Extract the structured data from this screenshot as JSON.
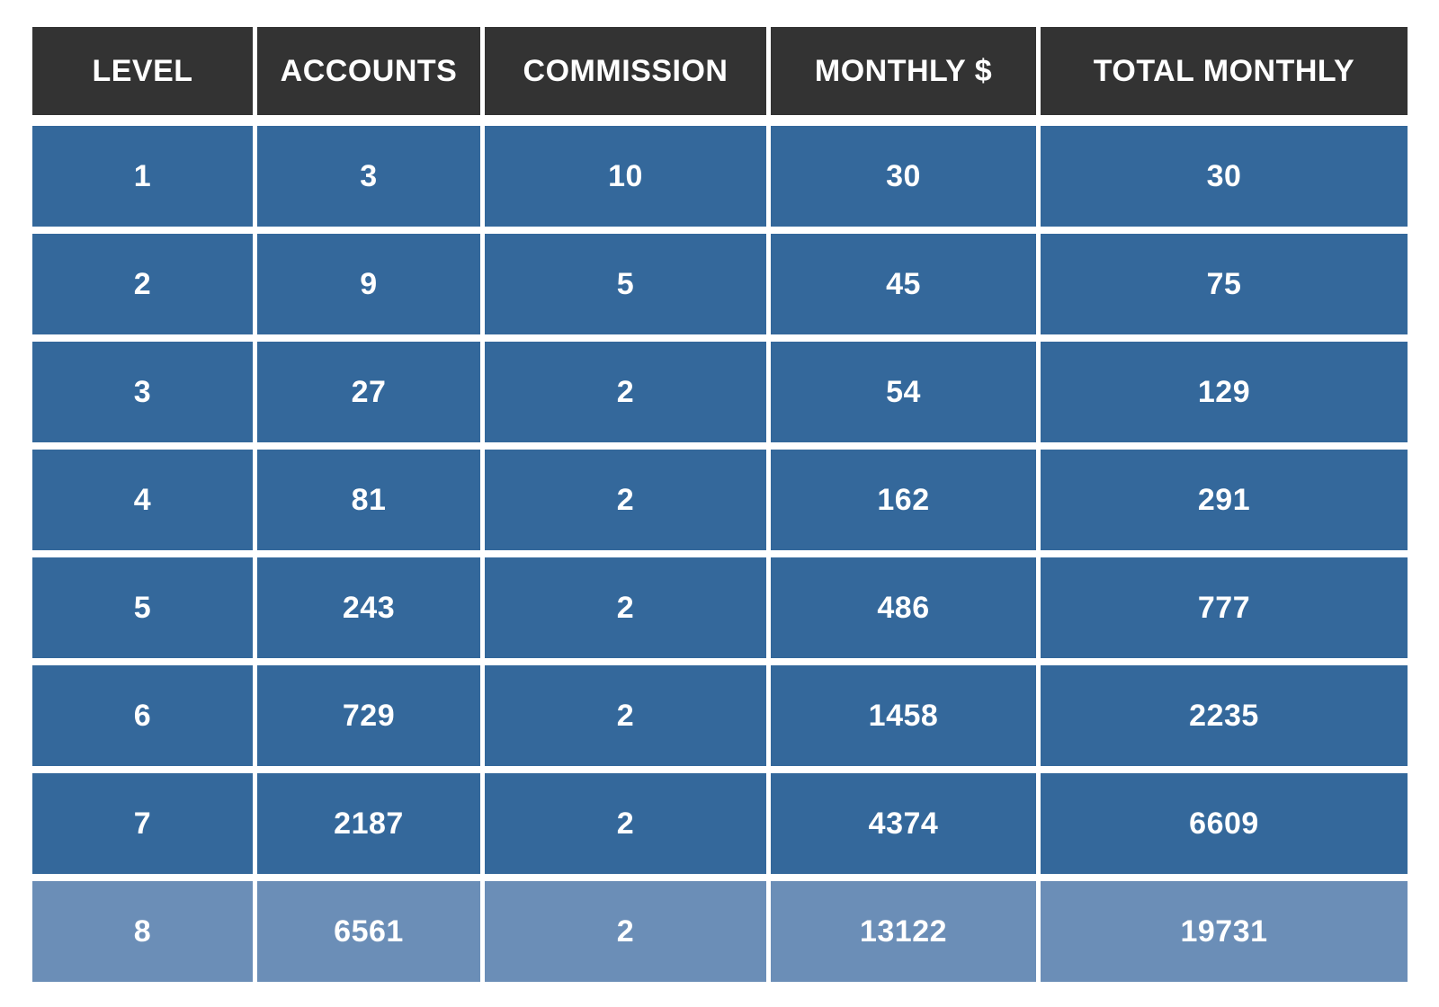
{
  "chart_data": {
    "type": "table",
    "title": "",
    "columns": [
      "LEVEL",
      "ACCOUNTS",
      "COMMISSION",
      "MONTHLY $",
      "TOTAL MONTHLY"
    ],
    "rows": [
      [
        "1",
        "3",
        "10",
        "30",
        "30"
      ],
      [
        "2",
        "9",
        "5",
        "45",
        "75"
      ],
      [
        "3",
        "27",
        "2",
        "54",
        "129"
      ],
      [
        "4",
        "81",
        "2",
        "162",
        "291"
      ],
      [
        "5",
        "243",
        "2",
        "486",
        "777"
      ],
      [
        "6",
        "729",
        "2",
        "1458",
        "2235"
      ],
      [
        "7",
        "2187",
        "2",
        "4374",
        "6609"
      ],
      [
        "8",
        "6561",
        "2",
        "13122",
        "19731"
      ]
    ],
    "highlighted_row_index": 7,
    "layout": {
      "legend": "none",
      "grid": "off",
      "header_position": "top"
    },
    "colors": {
      "header_bg": "#333333",
      "row_bg": "#34689B",
      "highlight_row_bg": "#6B8EB7",
      "text": "#FFFFFF",
      "background": "#FFFFFF"
    }
  }
}
